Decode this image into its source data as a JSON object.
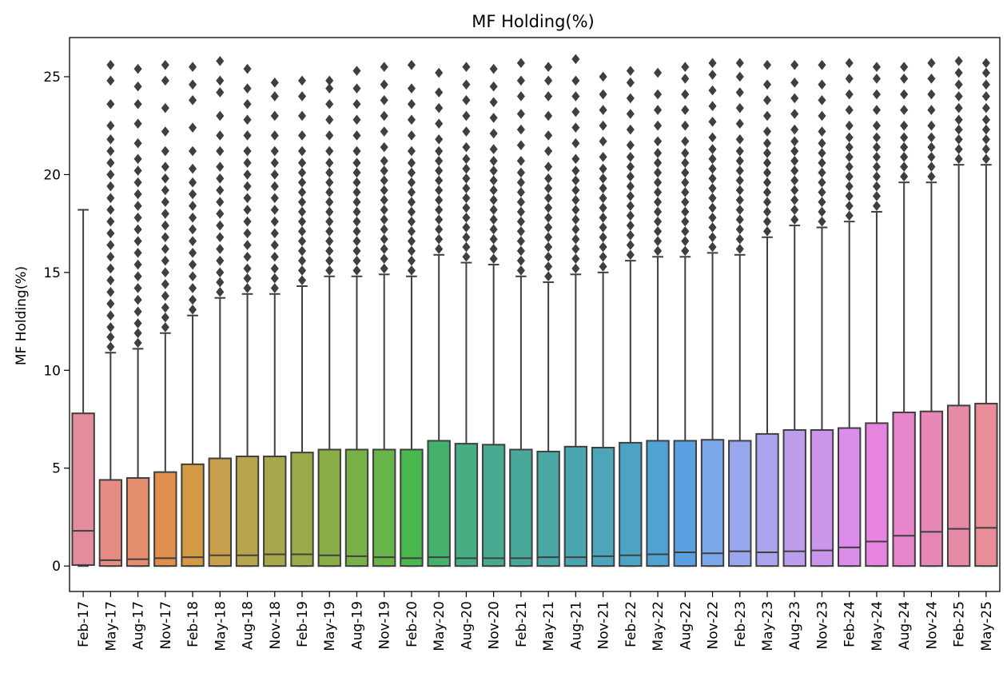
{
  "chart_data": {
    "type": "boxplot",
    "title": "MF Holding(%)",
    "xlabel": "",
    "ylabel": "MF Holding(%)",
    "ylim": [
      -1.3,
      27.0
    ],
    "yticks": [
      0,
      5,
      10,
      15,
      20,
      25
    ],
    "grid": false,
    "legend": "none",
    "categories": [
      "Feb-17",
      "May-17",
      "Aug-17",
      "Nov-17",
      "Feb-18",
      "May-18",
      "Aug-18",
      "Nov-18",
      "Feb-19",
      "May-19",
      "Aug-19",
      "Nov-19",
      "Feb-20",
      "May-20",
      "Aug-20",
      "Nov-20",
      "Feb-21",
      "May-21",
      "Aug-21",
      "Nov-21",
      "Feb-22",
      "May-22",
      "Aug-22",
      "Nov-22",
      "Feb-23",
      "May-23",
      "Aug-23",
      "Nov-23",
      "Feb-24",
      "May-24",
      "Aug-24",
      "Nov-24",
      "Feb-25",
      "May-25"
    ],
    "colors": [
      "#e58c9c",
      "#e58d83",
      "#e58f6e",
      "#e0904c",
      "#d39a44",
      "#c8a04c",
      "#b9a44e",
      "#a7a84c",
      "#9aab4a",
      "#89ae48",
      "#78b148",
      "#66b44a",
      "#4bb84f",
      "#46b16c",
      "#47ad83",
      "#48ab91",
      "#48a99a",
      "#49a8a3",
      "#4aa6ae",
      "#4ca5b8",
      "#4da3c4",
      "#4fa2d2",
      "#5aa1e1",
      "#7aa8ea",
      "#98a7ee",
      "#aba5ee",
      "#bc9eec",
      "#cb95eb",
      "#dc8cea",
      "#e784df",
      "#e685c9",
      "#e687b7",
      "#e68aa6",
      "#e98d99"
    ],
    "series": [
      {
        "name": "",
        "q1": 0.05,
        "median": 1.8,
        "q3": 7.8,
        "whisker_low": 0.0,
        "whisker_high": 18.2,
        "fliers": []
      },
      {
        "name": "",
        "q1": 0.0,
        "median": 0.3,
        "q3": 4.4,
        "whisker_low": 0.0,
        "whisker_high": 10.9,
        "fliers": [
          11.2,
          11.7,
          12.2,
          12.8,
          13.4,
          14.0,
          14.6,
          15.2,
          15.8,
          16.4,
          17.0,
          17.6,
          18.2,
          18.8,
          19.4,
          20.0,
          20.6,
          21.2,
          21.8,
          22.5,
          23.6,
          24.8,
          25.6
        ]
      },
      {
        "name": "",
        "q1": 0.0,
        "median": 0.35,
        "q3": 4.5,
        "whisker_low": 0.0,
        "whisker_high": 11.1,
        "fliers": [
          11.4,
          11.9,
          12.4,
          13.0,
          13.6,
          14.2,
          14.8,
          15.4,
          16.0,
          16.6,
          17.2,
          17.8,
          18.4,
          19.0,
          19.6,
          20.2,
          20.8,
          21.6,
          22.6,
          23.6,
          24.5,
          25.4
        ]
      },
      {
        "name": "",
        "q1": 0.0,
        "median": 0.4,
        "q3": 4.8,
        "whisker_low": 0.0,
        "whisker_high": 11.9,
        "fliers": [
          12.2,
          12.7,
          13.2,
          13.8,
          14.4,
          15.0,
          15.6,
          16.2,
          16.8,
          17.4,
          18.0,
          18.6,
          19.2,
          19.8,
          20.4,
          21.2,
          22.2,
          23.4,
          24.8,
          25.6
        ]
      },
      {
        "name": "",
        "q1": 0.0,
        "median": 0.45,
        "q3": 5.2,
        "whisker_low": 0.0,
        "whisker_high": 12.8,
        "fliers": [
          13.1,
          13.6,
          14.2,
          14.8,
          15.4,
          16.0,
          16.6,
          17.2,
          17.8,
          18.4,
          19.0,
          19.6,
          20.3,
          21.2,
          22.4,
          23.8,
          24.6,
          25.5
        ]
      },
      {
        "name": "",
        "q1": 0.0,
        "median": 0.55,
        "q3": 5.5,
        "whisker_low": 0.0,
        "whisker_high": 13.7,
        "fliers": [
          14.0,
          14.5,
          15.0,
          15.6,
          16.2,
          16.8,
          17.4,
          18.0,
          18.6,
          19.2,
          19.8,
          20.4,
          21.2,
          22.0,
          23.0,
          24.2,
          24.8,
          25.8
        ]
      },
      {
        "name": "",
        "q1": 0.0,
        "median": 0.55,
        "q3": 5.6,
        "whisker_low": 0.0,
        "whisker_high": 13.9,
        "fliers": [
          14.2,
          14.7,
          15.2,
          15.8,
          16.4,
          17.0,
          17.6,
          18.2,
          18.8,
          19.4,
          20.0,
          20.6,
          21.2,
          22.0,
          22.8,
          23.6,
          24.4,
          25.4
        ]
      },
      {
        "name": "",
        "q1": 0.0,
        "median": 0.6,
        "q3": 5.6,
        "whisker_low": 0.0,
        "whisker_high": 13.9,
        "fliers": [
          14.2,
          14.7,
          15.2,
          15.8,
          16.4,
          17.0,
          17.6,
          18.2,
          18.8,
          19.4,
          20.0,
          20.6,
          21.2,
          22.0,
          23.0,
          24.0,
          24.7
        ]
      },
      {
        "name": "",
        "q1": 0.0,
        "median": 0.6,
        "q3": 5.8,
        "whisker_low": 0.0,
        "whisker_high": 14.3,
        "fliers": [
          14.6,
          15.1,
          15.6,
          16.1,
          16.6,
          17.1,
          17.6,
          18.1,
          18.6,
          19.1,
          19.6,
          20.1,
          20.6,
          21.2,
          22.0,
          23.0,
          24.0,
          24.8
        ]
      },
      {
        "name": "",
        "q1": 0.0,
        "median": 0.55,
        "q3": 5.95,
        "whisker_low": 0.0,
        "whisker_high": 14.8,
        "fliers": [
          15.1,
          15.6,
          16.1,
          16.6,
          17.1,
          17.6,
          18.1,
          18.6,
          19.1,
          19.6,
          20.1,
          20.6,
          21.2,
          22.0,
          22.8,
          23.6,
          24.4,
          24.8
        ]
      },
      {
        "name": "",
        "q1": 0.0,
        "median": 0.5,
        "q3": 5.95,
        "whisker_low": 0.0,
        "whisker_high": 14.8,
        "fliers": [
          15.1,
          15.6,
          16.1,
          16.6,
          17.1,
          17.6,
          18.1,
          18.6,
          19.1,
          19.6,
          20.1,
          20.6,
          21.2,
          22.0,
          22.8,
          23.6,
          24.4,
          25.3
        ]
      },
      {
        "name": "",
        "q1": 0.0,
        "median": 0.45,
        "q3": 5.95,
        "whisker_low": 0.0,
        "whisker_high": 14.9,
        "fliers": [
          15.2,
          15.7,
          16.2,
          16.7,
          17.2,
          17.7,
          18.2,
          18.7,
          19.2,
          19.7,
          20.2,
          20.7,
          21.4,
          22.2,
          23.0,
          23.8,
          24.6,
          25.5
        ]
      },
      {
        "name": "",
        "q1": 0.0,
        "median": 0.4,
        "q3": 5.95,
        "whisker_low": 0.0,
        "whisker_high": 14.8,
        "fliers": [
          15.1,
          15.6,
          16.1,
          16.6,
          17.1,
          17.6,
          18.1,
          18.6,
          19.1,
          19.6,
          20.1,
          20.6,
          21.2,
          22.0,
          22.8,
          23.6,
          24.4,
          25.6
        ]
      },
      {
        "name": "",
        "q1": 0.0,
        "median": 0.45,
        "q3": 6.4,
        "whisker_low": 0.0,
        "whisker_high": 15.9,
        "fliers": [
          16.2,
          16.7,
          17.2,
          17.7,
          18.2,
          18.7,
          19.2,
          19.7,
          20.2,
          20.7,
          21.2,
          21.8,
          22.6,
          23.4,
          24.2,
          25.2
        ]
      },
      {
        "name": "",
        "q1": 0.0,
        "median": 0.4,
        "q3": 6.25,
        "whisker_low": 0.0,
        "whisker_high": 15.5,
        "fliers": [
          15.8,
          16.3,
          16.8,
          17.3,
          17.8,
          18.3,
          18.8,
          19.3,
          19.8,
          20.3,
          20.8,
          21.4,
          22.2,
          23.0,
          23.8,
          24.6,
          25.5
        ]
      },
      {
        "name": "",
        "q1": 0.0,
        "median": 0.4,
        "q3": 6.2,
        "whisker_low": 0.0,
        "whisker_high": 15.4,
        "fliers": [
          15.7,
          16.2,
          16.7,
          17.2,
          17.7,
          18.2,
          18.7,
          19.2,
          19.7,
          20.2,
          20.7,
          21.3,
          22.1,
          22.9,
          23.7,
          24.5,
          25.4
        ]
      },
      {
        "name": "",
        "q1": 0.0,
        "median": 0.4,
        "q3": 5.95,
        "whisker_low": 0.0,
        "whisker_high": 14.8,
        "fliers": [
          15.1,
          15.6,
          16.1,
          16.6,
          17.1,
          17.6,
          18.1,
          18.6,
          19.1,
          19.6,
          20.1,
          20.7,
          21.5,
          22.3,
          23.1,
          24.0,
          24.8,
          25.7
        ]
      },
      {
        "name": "",
        "q1": 0.0,
        "median": 0.45,
        "q3": 5.85,
        "whisker_low": 0.0,
        "whisker_high": 14.5,
        "fliers": [
          14.8,
          15.3,
          15.8,
          16.3,
          16.8,
          17.3,
          17.8,
          18.3,
          18.8,
          19.3,
          19.8,
          20.4,
          21.2,
          22.0,
          23.0,
          24.0,
          24.8,
          25.5
        ]
      },
      {
        "name": "",
        "q1": 0.0,
        "median": 0.45,
        "q3": 6.1,
        "whisker_low": 0.0,
        "whisker_high": 14.9,
        "fliers": [
          15.2,
          15.7,
          16.2,
          16.7,
          17.2,
          17.7,
          18.2,
          18.7,
          19.2,
          19.7,
          20.2,
          20.8,
          21.6,
          22.4,
          23.2,
          24.0,
          24.8,
          25.9
        ]
      },
      {
        "name": "",
        "q1": 0.0,
        "median": 0.5,
        "q3": 6.05,
        "whisker_low": 0.0,
        "whisker_high": 15.0,
        "fliers": [
          15.3,
          15.8,
          16.3,
          16.8,
          17.3,
          17.8,
          18.3,
          18.8,
          19.3,
          19.8,
          20.3,
          20.9,
          21.7,
          22.5,
          23.3,
          24.1,
          25.0
        ]
      },
      {
        "name": "",
        "q1": 0.0,
        "median": 0.55,
        "q3": 6.3,
        "whisker_low": 0.0,
        "whisker_high": 15.6,
        "fliers": [
          15.9,
          16.4,
          16.9,
          17.4,
          17.9,
          18.4,
          18.9,
          19.4,
          19.9,
          20.4,
          20.9,
          21.5,
          22.3,
          23.1,
          23.9,
          24.7,
          25.3
        ]
      },
      {
        "name": "",
        "q1": 0.0,
        "median": 0.6,
        "q3": 6.4,
        "whisker_low": 0.0,
        "whisker_high": 15.8,
        "fliers": [
          16.1,
          16.6,
          17.1,
          17.6,
          18.1,
          18.6,
          19.1,
          19.6,
          20.1,
          20.6,
          21.1,
          21.7,
          22.5,
          23.3,
          24.1,
          25.2
        ]
      },
      {
        "name": "",
        "q1": 0.0,
        "median": 0.7,
        "q3": 6.4,
        "whisker_low": 0.0,
        "whisker_high": 15.8,
        "fliers": [
          16.1,
          16.6,
          17.1,
          17.6,
          18.1,
          18.6,
          19.1,
          19.6,
          20.1,
          20.6,
          21.1,
          21.7,
          22.5,
          23.3,
          24.1,
          24.9,
          25.5
        ]
      },
      {
        "name": "",
        "q1": 0.0,
        "median": 0.65,
        "q3": 6.45,
        "whisker_low": 0.0,
        "whisker_high": 16.0,
        "fliers": [
          16.3,
          16.8,
          17.3,
          17.8,
          18.3,
          18.8,
          19.3,
          19.8,
          20.3,
          20.8,
          21.3,
          21.9,
          22.7,
          23.5,
          24.3,
          25.1,
          25.7
        ]
      },
      {
        "name": "",
        "q1": 0.0,
        "median": 0.75,
        "q3": 6.4,
        "whisker_low": 0.0,
        "whisker_high": 15.9,
        "fliers": [
          16.2,
          16.7,
          17.2,
          17.7,
          18.2,
          18.7,
          19.2,
          19.7,
          20.2,
          20.7,
          21.2,
          21.8,
          22.6,
          23.4,
          24.2,
          25.0,
          25.7
        ]
      },
      {
        "name": "",
        "q1": 0.0,
        "median": 0.7,
        "q3": 6.75,
        "whisker_low": 0.0,
        "whisker_high": 16.8,
        "fliers": [
          17.1,
          17.6,
          18.1,
          18.6,
          19.1,
          19.6,
          20.1,
          20.6,
          21.1,
          21.6,
          22.2,
          23.0,
          23.8,
          24.6,
          25.6
        ]
      },
      {
        "name": "",
        "q1": 0.0,
        "median": 0.75,
        "q3": 6.95,
        "whisker_low": 0.0,
        "whisker_high": 17.4,
        "fliers": [
          17.7,
          18.2,
          18.7,
          19.2,
          19.7,
          20.2,
          20.7,
          21.2,
          21.7,
          22.3,
          23.1,
          23.9,
          24.7,
          25.6
        ]
      },
      {
        "name": "",
        "q1": 0.0,
        "median": 0.8,
        "q3": 6.95,
        "whisker_low": 0.0,
        "whisker_high": 17.3,
        "fliers": [
          17.6,
          18.1,
          18.6,
          19.1,
          19.6,
          20.1,
          20.6,
          21.1,
          21.6,
          22.2,
          23.0,
          23.8,
          24.6,
          25.6
        ]
      },
      {
        "name": "",
        "q1": 0.0,
        "median": 0.95,
        "q3": 7.05,
        "whisker_low": 0.0,
        "whisker_high": 17.6,
        "fliers": [
          17.9,
          18.4,
          18.9,
          19.4,
          19.9,
          20.4,
          20.9,
          21.4,
          21.9,
          22.5,
          23.3,
          24.1,
          24.9,
          25.7
        ]
      },
      {
        "name": "",
        "q1": 0.0,
        "median": 1.25,
        "q3": 7.3,
        "whisker_low": 0.0,
        "whisker_high": 18.1,
        "fliers": [
          18.4,
          18.9,
          19.4,
          19.9,
          20.4,
          20.9,
          21.4,
          21.9,
          22.5,
          23.3,
          24.1,
          24.9,
          25.5
        ]
      },
      {
        "name": "",
        "q1": 0.0,
        "median": 1.55,
        "q3": 7.85,
        "whisker_low": 0.0,
        "whisker_high": 19.6,
        "fliers": [
          19.9,
          20.4,
          20.9,
          21.4,
          21.9,
          22.5,
          23.3,
          24.1,
          24.9,
          25.5
        ]
      },
      {
        "name": "",
        "q1": 0.0,
        "median": 1.75,
        "q3": 7.9,
        "whisker_low": 0.0,
        "whisker_high": 19.6,
        "fliers": [
          19.9,
          20.4,
          20.9,
          21.4,
          21.9,
          22.5,
          23.3,
          24.1,
          24.9,
          25.7
        ]
      },
      {
        "name": "",
        "q1": 0.0,
        "median": 1.9,
        "q3": 8.2,
        "whisker_low": 0.0,
        "whisker_high": 20.5,
        "fliers": [
          20.8,
          21.3,
          21.8,
          22.3,
          22.8,
          23.4,
          24.0,
          24.6,
          25.2,
          25.8
        ]
      },
      {
        "name": "",
        "q1": 0.0,
        "median": 1.95,
        "q3": 8.3,
        "whisker_low": 0.0,
        "whisker_high": 20.5,
        "fliers": [
          20.8,
          21.3,
          21.8,
          22.3,
          22.8,
          23.4,
          24.0,
          24.6,
          25.2,
          25.7
        ]
      }
    ]
  }
}
